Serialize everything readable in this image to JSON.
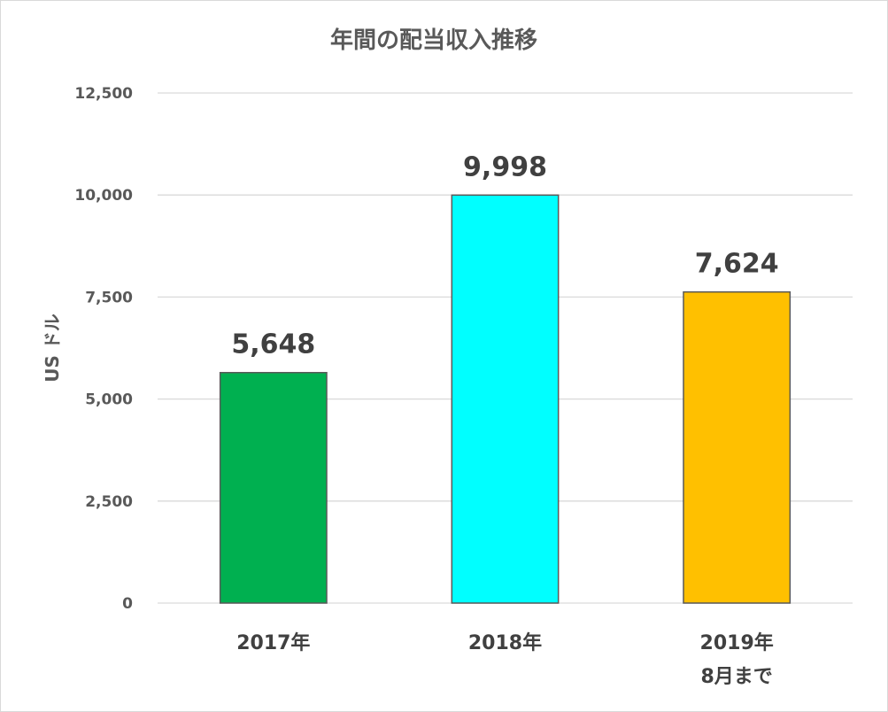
{
  "chart_data": {
    "type": "bar",
    "title": "年間の配当収入推移",
    "ylabel": "US ドル",
    "xlabel": "",
    "categories": [
      [
        "2017年"
      ],
      [
        "2018年"
      ],
      [
        "2019年",
        "8月まで"
      ]
    ],
    "values": [
      5648,
      9998,
      7624
    ],
    "value_labels": [
      "5,648",
      "9,998",
      "7,624"
    ],
    "colors": [
      "#00b050",
      "#00ffff",
      "#ffc000"
    ],
    "ylim": [
      0,
      12500
    ],
    "yticks": [
      0,
      2500,
      5000,
      7500,
      10000,
      12500
    ],
    "ytick_labels": [
      "0",
      "2,500",
      "5,000",
      "7,500",
      "10,000",
      "12,500"
    ],
    "grid": true,
    "legend": "none"
  }
}
